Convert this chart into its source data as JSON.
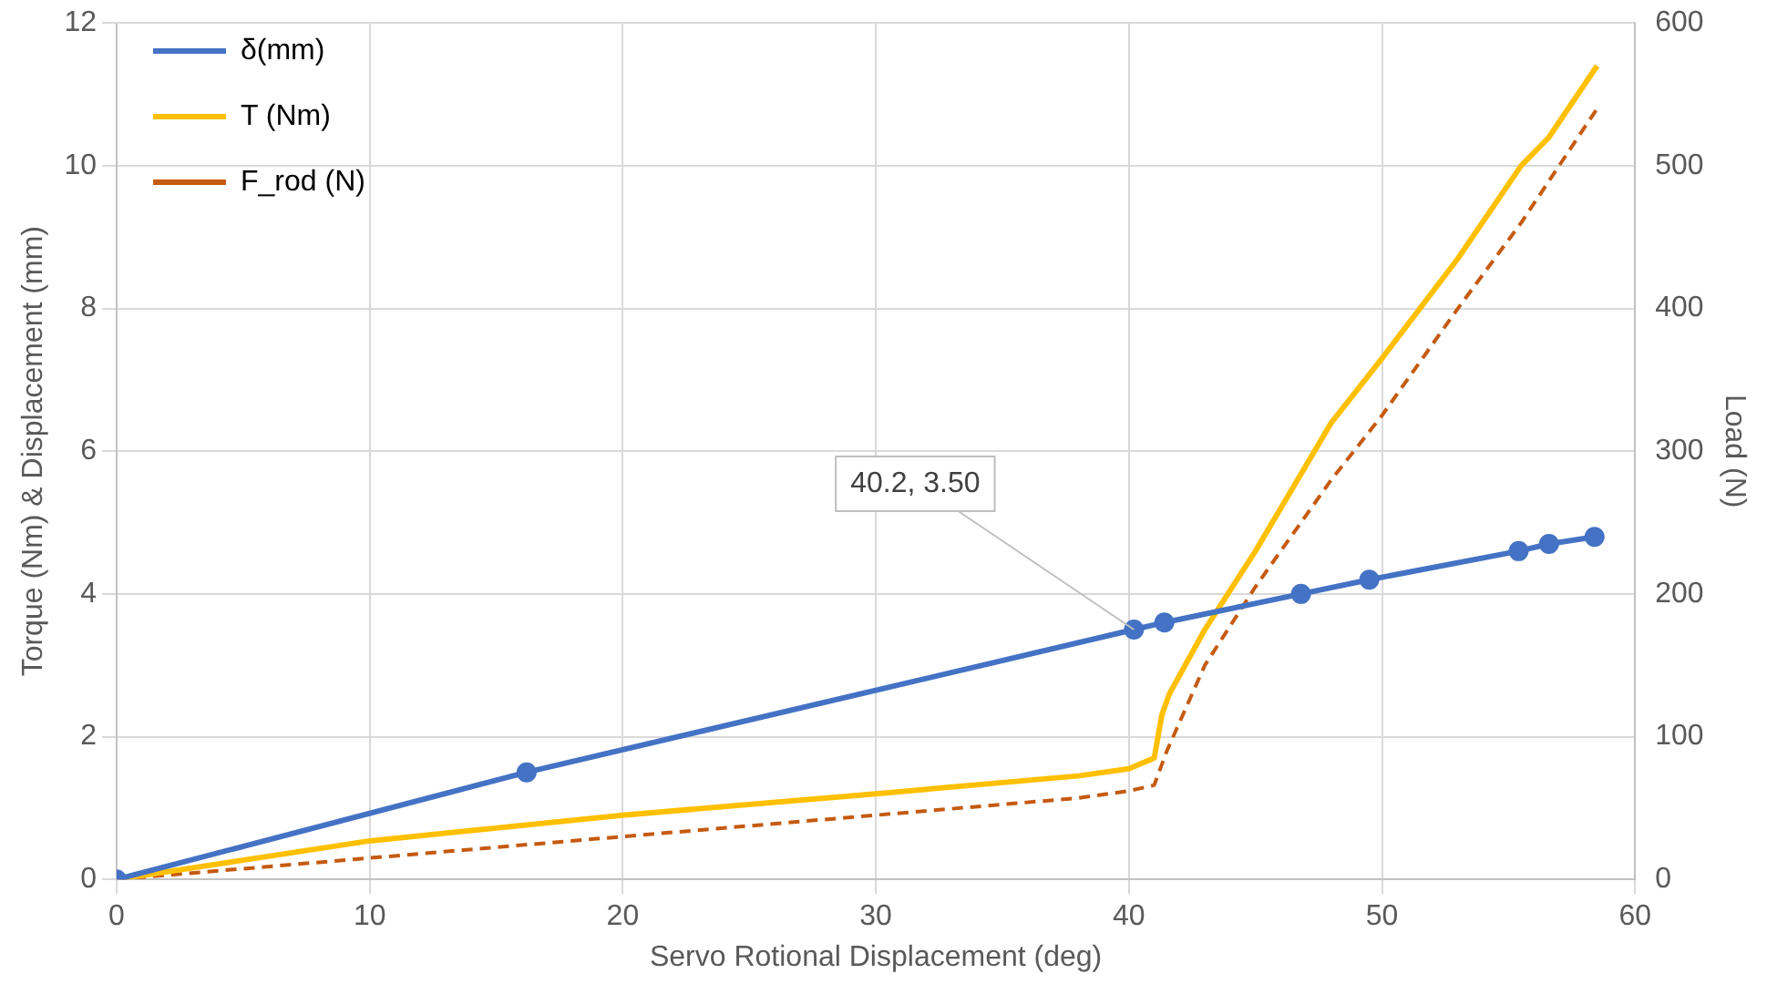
{
  "chart_data": {
    "type": "line",
    "xlabel": "Servo Rotional Displacement (deg)",
    "ylabel": "Torque (Nm) & Displacement (mm)",
    "y2label": "Load (N)",
    "xlim": [
      0,
      60
    ],
    "xticks": [
      0,
      10,
      20,
      30,
      40,
      50,
      60
    ],
    "ylim": [
      0,
      12
    ],
    "yticks": [
      0,
      2,
      4,
      6,
      8,
      10,
      12
    ],
    "y2lim": [
      0,
      600
    ],
    "y2ticks": [
      0,
      100,
      200,
      300,
      400,
      500,
      600
    ],
    "grid": true,
    "legend": "top left",
    "series": [
      {
        "name": "δ(mm)",
        "color": "#4472c4",
        "marker": "circle",
        "line_style": "solid",
        "x": [
          0,
          16.2,
          40.2,
          41.4,
          46.8,
          49.5,
          55.4,
          56.6,
          58.4
        ],
        "values": [
          0,
          1.5,
          3.5,
          3.6,
          4.0,
          4.2,
          4.6,
          4.7,
          4.8
        ]
      },
      {
        "name": "T (Nm)",
        "color": "#ffc000",
        "marker": "none",
        "line_style": "solid",
        "x": [
          0,
          10,
          20,
          30,
          38,
          40,
          41,
          41.3,
          41.6,
          43,
          45,
          48,
          50,
          53,
          55.5,
          56.6,
          58.5
        ],
        "values": [
          0,
          0.54,
          0.9,
          1.2,
          1.45,
          1.55,
          1.7,
          2.3,
          2.6,
          3.5,
          4.6,
          6.4,
          7.3,
          8.7,
          10.0,
          10.4,
          11.4
        ]
      },
      {
        "name": "F_rod (N)",
        "color": "#c55a11",
        "marker": "none",
        "line_style": "dashed",
        "axis": "y2",
        "x": [
          0,
          10,
          20,
          30,
          38,
          40,
          41,
          41.5,
          43,
          45,
          48,
          50,
          53,
          55.5,
          58.5
        ],
        "values": [
          0,
          15,
          30,
          45,
          57,
          62,
          66,
          90,
          150,
          205,
          280,
          325,
          400,
          460,
          540
        ]
      }
    ],
    "annotations": [
      {
        "text": "40.2, 3.50",
        "x": 40.2,
        "y": 3.5
      }
    ]
  }
}
